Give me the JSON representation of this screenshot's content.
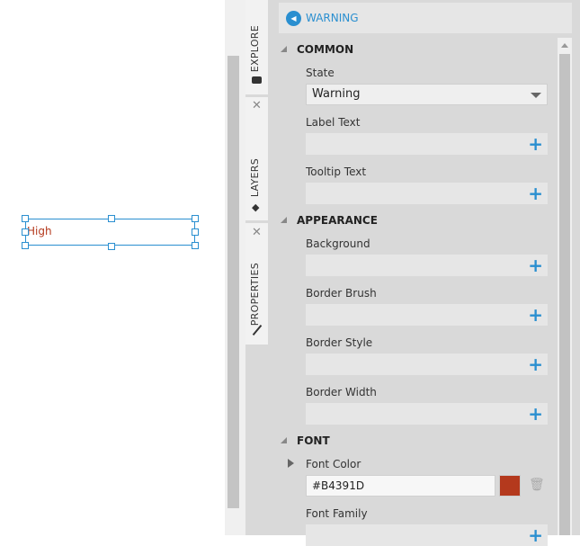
{
  "canvas": {
    "text_element": "High",
    "text_color": "#B4391D"
  },
  "tabs": {
    "explore": "EXPLORE",
    "layers": "LAYERS",
    "properties": "PROPERTIES"
  },
  "header": {
    "title": "WARNING"
  },
  "sections": {
    "common": {
      "title": "COMMON",
      "state_label": "State",
      "state_value": "Warning",
      "label_text": "Label Text",
      "tooltip_text": "Tooltip Text"
    },
    "appearance": {
      "title": "APPEARANCE",
      "background": "Background",
      "border_brush": "Border Brush",
      "border_style": "Border Style",
      "border_width": "Border Width"
    },
    "font": {
      "title": "FONT",
      "font_color": "Font Color",
      "font_color_value": "#B4391D",
      "font_family": "Font Family"
    }
  },
  "colors": {
    "accent": "#2a8fd0",
    "font_color_swatch": "#B4391D"
  }
}
